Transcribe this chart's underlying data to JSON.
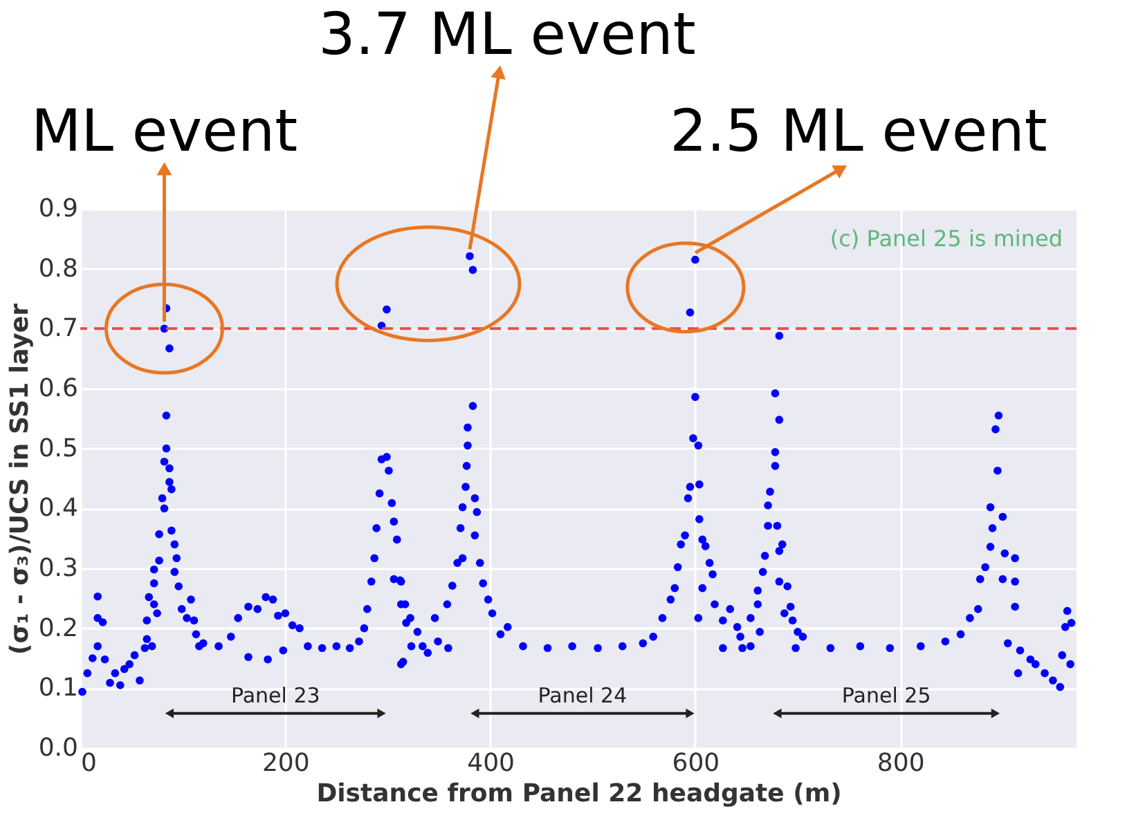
{
  "chart_data": {
    "type": "scatter",
    "xlabel": "Distance from Panel 22 headgate (m)",
    "ylabel": "(σ₁ - σ₃)/UCS in SS1 layer",
    "xlim": [
      0,
      972
    ],
    "ylim": [
      0,
      0.9
    ],
    "xticks": [
      0,
      200,
      400,
      600,
      800
    ],
    "yticks": [
      {
        "value": 0,
        "label": "0.0"
      },
      {
        "value": 0.1,
        "label": "0.1"
      },
      {
        "value": 0.2,
        "label": "0.2"
      },
      {
        "value": 0.3,
        "label": "0.3"
      },
      {
        "value": 0.4,
        "label": "0.4"
      },
      {
        "value": 0.5,
        "label": "0.5"
      },
      {
        "value": 0.6,
        "label": "0.6"
      },
      {
        "value": 0.7,
        "label": "0.7"
      },
      {
        "value": 0.8,
        "label": "0.8"
      },
      {
        "value": 0.9,
        "label": "0.9"
      }
    ],
    "grid": true,
    "marker": "circle",
    "series": [
      {
        "color": "#0000ff",
        "x": [
          2,
          7,
          12,
          17,
          17,
          17,
          22,
          24,
          29,
          34,
          39,
          43,
          48,
          53,
          58,
          63,
          65,
          70,
          65,
          67,
          72,
          75,
          72,
          72,
          77,
          77,
          80,
          82,
          82,
          84,
          84,
          87,
          87,
          89,
          89,
          92,
          94,
          92,
          96,
          99,
          104,
          108,
          111,
          113,
          116,
          84,
          82,
          87,
          120,
          135,
          147,
          154,
          164,
          173,
          181,
          188,
          193,
          200,
          207,
          214,
          164,
          183,
          198,
          222,
          236,
          250,
          263,
          272,
          277,
          280,
          284,
          287,
          289,
          292,
          294,
          299,
          301,
          304,
          306,
          309,
          306,
          313,
          313,
          313,
          318,
          323,
          299,
          294,
          312,
          317,
          322,
          329,
          315,
          334,
          339,
          346,
          349,
          358,
          359,
          363,
          368,
          373,
          371,
          373,
          376,
          377,
          378,
          378,
          383,
          385,
          387,
          385,
          390,
          393,
          398,
          402,
          410,
          417,
          380,
          383,
          432,
          456,
          480,
          505,
          529,
          549,
          559,
          568,
          576,
          580,
          583,
          586,
          590,
          593,
          595,
          598,
          603,
          600,
          604,
          604,
          607,
          607,
          603,
          610,
          614,
          617,
          619,
          627,
          627,
          634,
          641,
          646,
          654,
          661,
          600,
          595,
          644,
          654,
          663,
          661,
          666,
          668,
          671,
          671,
          673,
          678,
          678,
          682,
          678,
          682,
          680,
          685,
          682,
          682,
          690,
          687,
          693,
          695,
          700,
          705,
          698,
          732,
          761,
          790,
          820,
          844,
          859,
          868,
          876,
          878,
          883,
          888,
          888,
          890,
          895,
          893,
          896,
          900,
          902,
          900,
          912,
          912,
          912,
          905,
          917,
          927,
          915,
          932,
          941,
          949,
          956,
          958,
          961,
          963,
          967,
          966
        ],
        "values": [
          0.094,
          0.125,
          0.15,
          0.17,
          0.217,
          0.253,
          0.21,
          0.148,
          0.109,
          0.125,
          0.105,
          0.132,
          0.14,
          0.155,
          0.113,
          0.167,
          0.182,
          0.17,
          0.213,
          0.252,
          0.24,
          0.225,
          0.275,
          0.298,
          0.313,
          0.357,
          0.417,
          0.4,
          0.478,
          0.5,
          0.555,
          0.467,
          0.444,
          0.432,
          0.363,
          0.34,
          0.317,
          0.294,
          0.27,
          0.232,
          0.217,
          0.248,
          0.213,
          0.19,
          0.17,
          0.734,
          0.7,
          0.667,
          0.175,
          0.17,
          0.186,
          0.217,
          0.236,
          0.232,
          0.252,
          0.248,
          0.221,
          0.225,
          0.205,
          0.2,
          0.152,
          0.148,
          0.163,
          0.17,
          0.167,
          0.17,
          0.167,
          0.178,
          0.2,
          0.232,
          0.278,
          0.317,
          0.367,
          0.425,
          0.482,
          0.486,
          0.463,
          0.409,
          0.378,
          0.348,
          0.282,
          0.278,
          0.24,
          0.14,
          0.209,
          0.17,
          0.732,
          0.705,
          0.28,
          0.24,
          0.217,
          0.194,
          0.144,
          0.17,
          0.159,
          0.217,
          0.178,
          0.24,
          0.167,
          0.271,
          0.309,
          0.317,
          0.367,
          0.402,
          0.436,
          0.471,
          0.505,
          0.535,
          0.571,
          0.417,
          0.394,
          0.355,
          0.309,
          0.275,
          0.248,
          0.225,
          0.19,
          0.202,
          0.821,
          0.798,
          0.17,
          0.167,
          0.17,
          0.167,
          0.17,
          0.175,
          0.186,
          0.217,
          0.248,
          0.267,
          0.302,
          0.34,
          0.355,
          0.417,
          0.436,
          0.517,
          0.505,
          0.586,
          0.44,
          0.382,
          0.348,
          0.267,
          0.217,
          0.337,
          0.309,
          0.29,
          0.24,
          0.213,
          0.167,
          0.232,
          0.202,
          0.167,
          0.217,
          0.24,
          0.815,
          0.727,
          0.186,
          0.17,
          0.194,
          0.263,
          0.294,
          0.321,
          0.371,
          0.405,
          0.428,
          0.471,
          0.494,
          0.548,
          0.592,
          0.688,
          0.371,
          0.34,
          0.329,
          0.278,
          0.27,
          0.225,
          0.236,
          0.213,
          0.194,
          0.186,
          0.167,
          0.167,
          0.17,
          0.167,
          0.17,
          0.178,
          0.19,
          0.217,
          0.232,
          0.282,
          0.302,
          0.336,
          0.402,
          0.367,
          0.463,
          0.532,
          0.555,
          0.386,
          0.325,
          0.282,
          0.317,
          0.278,
          0.236,
          0.175,
          0.163,
          0.148,
          0.125,
          0.14,
          0.125,
          0.113,
          0.102,
          0.155,
          0.202,
          0.229,
          0.209,
          0.14
        ]
      },
      {
        "type": "line",
        "name": "Panel 23",
        "color": "#222222",
        "marker": "triangle",
        "x": [
          87,
          294
        ],
        "values": [
          0.058,
          0.058
        ]
      },
      {
        "type": "line",
        "name": "Panel 24",
        "color": "#222222",
        "marker": "triangle",
        "x": [
          385,
          595
        ],
        "values": [
          0.058,
          0.058
        ]
      },
      {
        "type": "line",
        "name": "Panel 25",
        "color": "#222222",
        "marker": "triangle",
        "x": [
          680,
          893
        ],
        "values": [
          0.058,
          0.058
        ]
      }
    ],
    "ref_lines": [
      {
        "axis": "y",
        "value": 0.7,
        "color": "#d9534f",
        "line_style": "dashed"
      }
    ],
    "annotations": [
      {
        "text": "ML event",
        "x": 82,
        "y": 0.7
      },
      {
        "text": "3.7 ML event",
        "x": 380,
        "y": 0.821
      },
      {
        "text": "2.5 ML event",
        "x": 600,
        "y": 0.815
      },
      "(c) Panel 25 is mined"
    ]
  }
}
